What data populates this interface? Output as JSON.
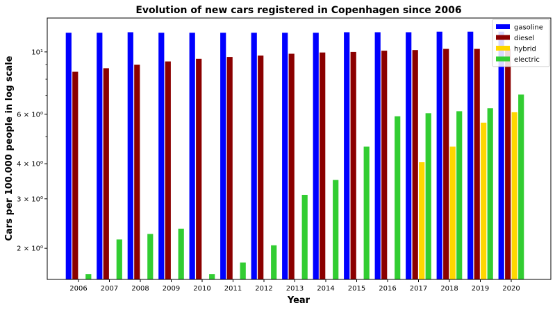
{
  "chart_data": {
    "type": "bar",
    "title": "Evolution of new cars registered in Copenhagen since 2006",
    "xlabel": "Year",
    "ylabel": "Cars per 100.000 people in log scale",
    "yscale": "log",
    "ylim": [
      1.55,
      13.2
    ],
    "categories": [
      "2006",
      "2007",
      "2008",
      "2009",
      "2010",
      "2011",
      "2012",
      "2013",
      "2014",
      "2015",
      "2016",
      "2017",
      "2018",
      "2019",
      "2020"
    ],
    "y_ticks": [
      {
        "value": 2,
        "label": "2 × 10⁰"
      },
      {
        "value": 3,
        "label": "3 × 10⁰"
      },
      {
        "value": 4,
        "label": "4 × 10⁰"
      },
      {
        "value": 6,
        "label": "6 × 10⁰"
      },
      {
        "value": 10,
        "label": "10¹"
      }
    ],
    "y_minor_ticks": [
      5,
      7,
      8,
      9
    ],
    "legend_position": "top-right",
    "series": [
      {
        "name": "gasoline",
        "color": "#0000ff",
        "values": [
          11.7,
          11.7,
          11.75,
          11.7,
          11.7,
          11.7,
          11.7,
          11.7,
          11.7,
          11.75,
          11.75,
          11.75,
          11.8,
          11.8,
          11.8
        ]
      },
      {
        "name": "diesel",
        "color": "#8b0000",
        "values": [
          8.5,
          8.75,
          9.0,
          9.25,
          9.45,
          9.6,
          9.7,
          9.85,
          9.95,
          10.0,
          10.1,
          10.15,
          10.25,
          10.25,
          10.25
        ]
      },
      {
        "name": "hybrid",
        "color": "#ffd700",
        "values": [
          null,
          null,
          null,
          null,
          null,
          null,
          null,
          null,
          null,
          null,
          null,
          4.05,
          4.6,
          5.6,
          6.1
        ]
      },
      {
        "name": "electric",
        "color": "#32cd32",
        "values": [
          1.62,
          2.15,
          2.25,
          2.35,
          1.62,
          1.78,
          2.05,
          3.1,
          3.5,
          4.6,
          5.9,
          6.05,
          6.15,
          6.3,
          7.05
        ]
      }
    ]
  }
}
